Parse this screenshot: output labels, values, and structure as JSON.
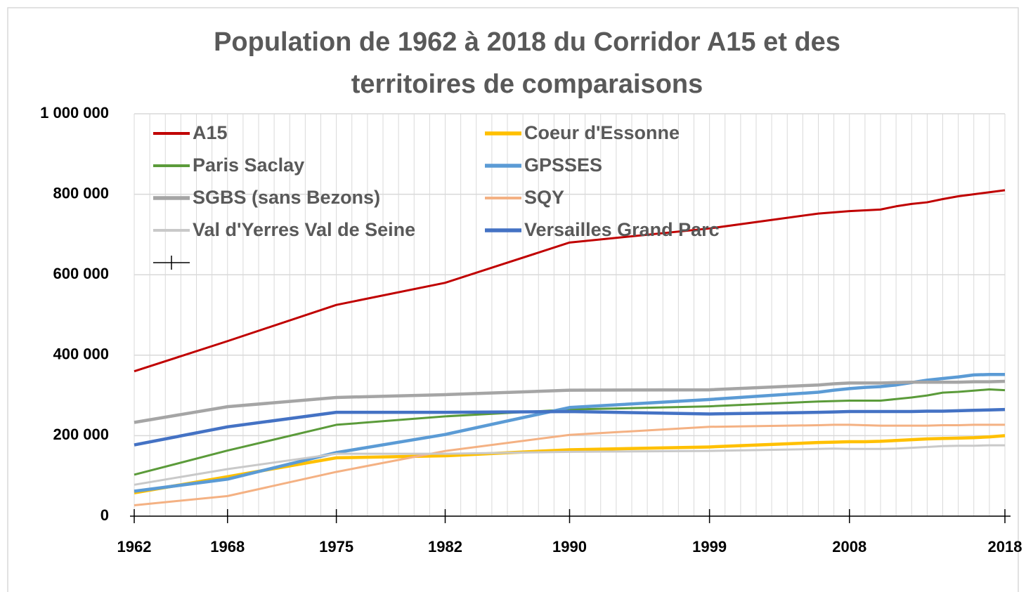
{
  "chart_data": {
    "type": "line",
    "title": [
      "Population de 1962 à 2018 du Corridor A15 et des",
      "territoires de comparaisons"
    ],
    "x": [
      1962,
      1968,
      1975,
      1982,
      1990,
      1999,
      2006,
      2007,
      2008,
      2009,
      2010,
      2011,
      2012,
      2013,
      2014,
      2015,
      2016,
      2017,
      2018
    ],
    "xlim": [
      1962,
      2018
    ],
    "xticks": [
      1962,
      1968,
      1975,
      1982,
      1990,
      1999,
      2008,
      2018
    ],
    "ylim": [
      0,
      1000000
    ],
    "yticks": [
      0,
      {
        "value": 200000,
        "label": "200 000"
      },
      {
        "value": 400000,
        "label": "400 000"
      },
      {
        "value": 600000,
        "label": "600 000"
      },
      {
        "value": 800000,
        "label": "800 000"
      },
      {
        "value": 1000000,
        "label": "1 000 000"
      }
    ],
    "grid": true,
    "minor_grid": true,
    "legend": "top-left",
    "series": [
      {
        "name": "A15",
        "color": "#c00000",
        "width": 3,
        "values": [
          360000,
          435000,
          525000,
          580000,
          680000,
          715000,
          752000,
          755000,
          758000,
          760000,
          762000,
          770000,
          776000,
          780000,
          788000,
          795000,
          800000,
          805000,
          810000
        ]
      },
      {
        "name": "Coeur d'Essonne",
        "color": "#ffc000",
        "width": 4.5,
        "values": [
          58000,
          98000,
          145000,
          150000,
          165000,
          172000,
          183000,
          184000,
          185000,
          185000,
          186000,
          188000,
          190000,
          192000,
          193000,
          194000,
          195000,
          197000,
          200000
        ]
      },
      {
        "name": "Paris Saclay",
        "color": "#5b9b3a",
        "width": 3,
        "values": [
          103000,
          163000,
          227000,
          248000,
          265000,
          273000,
          285000,
          286000,
          287000,
          287000,
          287000,
          291000,
          295000,
          300000,
          307000,
          309000,
          312000,
          315000,
          313000
        ]
      },
      {
        "name": "GPSSES",
        "color": "#5b9bd5",
        "width": 4.5,
        "values": [
          62000,
          92000,
          158000,
          203000,
          270000,
          290000,
          308000,
          313000,
          317000,
          320000,
          322000,
          326000,
          332000,
          338000,
          342000,
          346000,
          351000,
          352000,
          352000
        ]
      },
      {
        "name": "SGBS (sans Bezons)",
        "color": "#a5a5a5",
        "width": 4.5,
        "values": [
          233000,
          272000,
          295000,
          302000,
          313000,
          314000,
          326000,
          329000,
          331000,
          331000,
          331000,
          332000,
          333000,
          333000,
          333000,
          333000,
          334000,
          334000,
          335000
        ]
      },
      {
        "name": "SQY",
        "color": "#f4b183",
        "width": 3,
        "values": [
          27000,
          50000,
          110000,
          162000,
          202000,
          222000,
          226000,
          227000,
          227000,
          226000,
          225000,
          225000,
          225000,
          225000,
          226000,
          226000,
          227000,
          227000,
          227000
        ]
      },
      {
        "name": "Val d'Yerres Val de Seine",
        "color": "#c9c9c9",
        "width": 3,
        "values": [
          78000,
          117000,
          155000,
          155000,
          160000,
          162000,
          167000,
          168000,
          167000,
          167000,
          167000,
          168000,
          170000,
          172000,
          174000,
          175000,
          175000,
          176000,
          176000
        ]
      },
      {
        "name": "Versailles Grand Parc",
        "color": "#4472c4",
        "width": 4.5,
        "values": [
          177000,
          222000,
          258000,
          258000,
          260000,
          254000,
          258000,
          259000,
          260000,
          260000,
          260000,
          260000,
          260000,
          261000,
          261000,
          262000,
          263000,
          264000,
          265000
        ]
      }
    ]
  }
}
